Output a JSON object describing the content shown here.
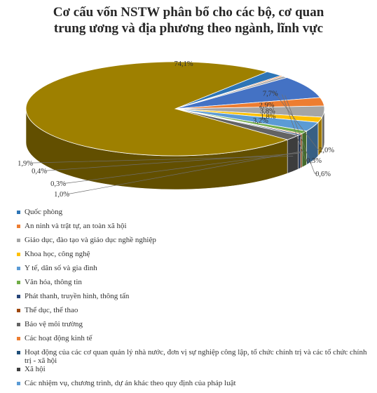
{
  "title_line1": "Cơ cấu vốn NSTW phân bổ cho các bộ, cơ quan",
  "title_line2": "trung ương và địa phương theo ngành, lĩnh vực",
  "chart_data": {
    "type": "pie",
    "title": "Cơ cấu vốn NSTW phân bổ cho các bộ, cơ quan trung ương và địa phương theo ngành, lĩnh vực",
    "legend_position": "bottom",
    "slices": [
      {
        "name": "Quốc phòng",
        "value": 2.0,
        "label": "2,0%",
        "color": "#2e75b6"
      },
      {
        "name": "An ninh và trật tự, an toàn xã hội",
        "value": 0.3,
        "label": "0,3%",
        "color": "#ed7d31"
      },
      {
        "name": "Giáo dục, đào tạo và giáo dục nghề nghiệp",
        "value": 0.6,
        "label": "0,6%",
        "color": "#a5a5a5"
      },
      {
        "name": "Khoa học, công nghệ",
        "value": 7.7,
        "label": "7,7%",
        "color": "#4472c4"
      },
      {
        "name": "Y tế, dân số và gia đình",
        "value": 2.9,
        "label": "2,9%",
        "color": "#ed7d31"
      },
      {
        "name": "Văn hóa, thông tin",
        "value": 3.8,
        "label": "3,8%",
        "color": "#a5a5a5"
      },
      {
        "name": "Phát thanh, truyền hình, thông tấn",
        "value": 1.8,
        "label": "1,8%",
        "color": "#ffc000"
      },
      {
        "name": "Thể dục, thể thao",
        "value": 3.2,
        "label": "3,2%",
        "color": "#5b9bd5"
      },
      {
        "name": "Bảo vệ môi trường",
        "value": 1.0,
        "label": "1,0%",
        "color": "#70ad47"
      },
      {
        "name": "Các hoạt động kinh tế",
        "value": 0.3,
        "label": "0,3%",
        "color": "#c55a11"
      },
      {
        "name": "Hoạt động của các cơ quan quản lý nhà nước, đơn vị sự nghiệp công lập, tổ chức chính trị và các tổ chức chính trị - xã hội",
        "value": 0.4,
        "label": "0,4%",
        "color": "#264478"
      },
      {
        "name": "Xã hội",
        "value": 1.9,
        "label": "1,9%",
        "color": "#636363"
      },
      {
        "name": "Các nhiệm vụ, chương trình, dự án khác theo quy định của pháp luật",
        "value": 74.1,
        "label": "74,1%",
        "color": "#9e8000"
      }
    ]
  },
  "legend": [
    {
      "text": "Quốc phòng",
      "color": "#2e75b6"
    },
    {
      "text": "An ninh và trật tự, an toàn xã hội",
      "color": "#ed7d31"
    },
    {
      "text": "Giáo dục, đào tạo và giáo dục nghề nghiệp",
      "color": "#a5a5a5"
    },
    {
      "text": "Khoa học, công nghệ",
      "color": "#ffc000"
    },
    {
      "text": "Y tế, dân số và gia đình",
      "color": "#5b9bd5"
    },
    {
      "text": "Văn hóa, thông tin",
      "color": "#70ad47"
    },
    {
      "text": "Phát thanh, truyền hình, thông tấn",
      "color": "#264478"
    },
    {
      "text": "Thể dục, thể thao",
      "color": "#9e480e"
    },
    {
      "text": "Bảo vệ môi trường",
      "color": "#636363"
    },
    {
      "text": "Các hoạt động kinh tế",
      "color": "#ed7d31"
    },
    {
      "text": "Hoạt động của các cơ quan quản lý nhà nước, đơn vị sự nghiệp công lập, tổ chức chính trị và các tổ chức chính trị - xã hội",
      "color": "#1f4e79"
    },
    {
      "text": "Xã hội",
      "color": "#404040"
    },
    {
      "text": "Các nhiệm vụ, chương trình, dự án khác theo quy định của pháp luật",
      "color": "#5b9bd5"
    }
  ]
}
